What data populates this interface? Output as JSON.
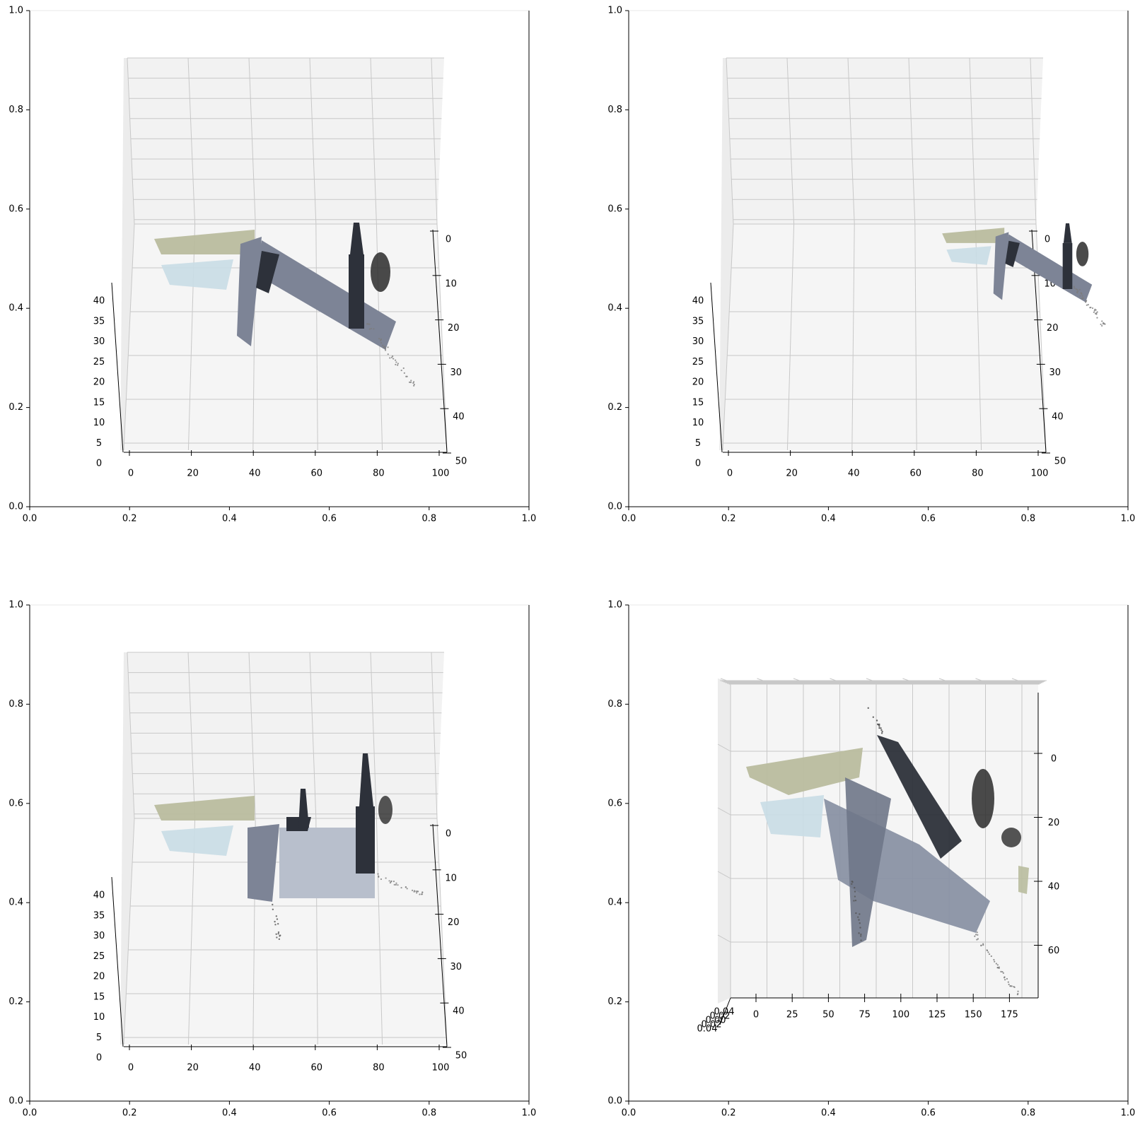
{
  "figure": {
    "layout": "2x2 grid of 3D point-cloud views rendered inside 2D axes",
    "colors": {
      "pane": "#f2f2f2",
      "pane_floor": "#f5f5f5",
      "grid": "#c8c8c8",
      "axis": "#000000",
      "roof": "#b9bc9e",
      "facade": "#7d8496",
      "tower": "#2d313a",
      "glass": "#c9dde6",
      "tree": "#2a2a2a"
    }
  },
  "chart_data": [
    {
      "type": "scatter",
      "title": "",
      "outer_axes": {
        "xlim": [
          0,
          1
        ],
        "ylim": [
          0,
          1
        ],
        "xticks": [
          "0.0",
          "0.2",
          "0.4",
          "0.6",
          "0.8",
          "1.0"
        ],
        "yticks": [
          "0.0",
          "0.2",
          "0.4",
          "0.6",
          "0.8",
          "1.0"
        ]
      },
      "axis3d": {
        "x_ticks": [
          "0",
          "20",
          "40",
          "60",
          "80",
          "100"
        ],
        "y_ticks": [
          "0",
          "10",
          "20",
          "30",
          "40",
          "50"
        ],
        "z_ticks": [
          "0",
          "5",
          "10",
          "15",
          "20",
          "25",
          "30",
          "35",
          "40"
        ]
      },
      "subject": "church point cloud",
      "grid": true
    },
    {
      "type": "scatter",
      "title": "",
      "outer_axes": {
        "xlim": [
          0,
          1
        ],
        "ylim": [
          0,
          1
        ],
        "xticks": [
          "0.0",
          "0.2",
          "0.4",
          "0.6",
          "0.8",
          "1.0"
        ],
        "yticks": [
          "0.0",
          "0.2",
          "0.4",
          "0.6",
          "0.8",
          "1.0"
        ]
      },
      "axis3d": {
        "x_ticks": [
          "0",
          "20",
          "40",
          "60",
          "80",
          "100"
        ],
        "y_ticks": [
          "0",
          "10",
          "20",
          "30",
          "40",
          "50"
        ],
        "z_ticks": [
          "0",
          "5",
          "10",
          "15",
          "20",
          "25",
          "30",
          "35",
          "40"
        ]
      },
      "subject": "church point cloud (smaller scale)",
      "grid": true
    },
    {
      "type": "scatter",
      "title": "",
      "outer_axes": {
        "xlim": [
          0,
          1
        ],
        "ylim": [
          0,
          1
        ],
        "xticks": [
          "0.0",
          "0.2",
          "0.4",
          "0.6",
          "0.8",
          "1.0"
        ],
        "yticks": [
          "0.0",
          "0.2",
          "0.4",
          "0.6",
          "0.8",
          "1.0"
        ]
      },
      "axis3d": {
        "x_ticks": [
          "0",
          "20",
          "40",
          "60",
          "80",
          "100"
        ],
        "y_ticks": [
          "0",
          "10",
          "20",
          "30",
          "40",
          "50"
        ],
        "z_ticks": [
          "0",
          "5",
          "10",
          "15",
          "20",
          "25",
          "30",
          "35",
          "40"
        ]
      },
      "subject": "church point cloud (frontal view)",
      "grid": true
    },
    {
      "type": "scatter",
      "title": "",
      "outer_axes": {
        "xlim": [
          0,
          1
        ],
        "ylim": [
          0,
          1
        ],
        "xticks": [
          "0.0",
          "0.2",
          "0.4",
          "0.6",
          "0.8",
          "1.0"
        ],
        "yticks": [
          "0.0",
          "0.2",
          "0.4",
          "0.6",
          "0.8",
          "1.0"
        ]
      },
      "axis3d": {
        "x_ticks": [
          "0",
          "25",
          "50",
          "75",
          "100",
          "125",
          "150",
          "175"
        ],
        "y_ticks": [
          "0",
          "20",
          "40",
          "60"
        ],
        "z_ticks": [
          "0.04",
          "0.02",
          "0.00",
          "0.02",
          "0.04"
        ]
      },
      "subject": "church point cloud (top-down view)",
      "grid": true
    }
  ]
}
